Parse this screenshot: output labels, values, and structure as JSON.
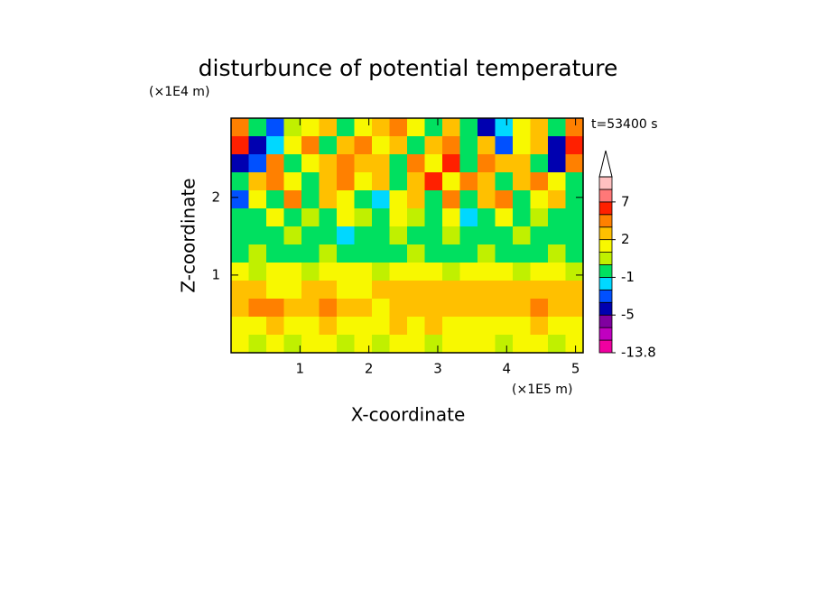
{
  "chart_data": {
    "type": "contour",
    "title": "disturbunce of potential temperature",
    "annotation": "t=53400 s",
    "x_label": "X-coordinate",
    "y_label": "Z-coordinate",
    "x_unit": "(×1E5 m)",
    "y_unit": "(×1E4 m)",
    "xlim": [
      0,
      5.11
    ],
    "ylim": [
      0,
      3.02
    ],
    "xticks": [
      1,
      2,
      3,
      4,
      5
    ],
    "yticks": [
      1,
      2
    ],
    "z": [
      [
        3,
        -1,
        -3,
        0,
        1,
        2,
        -1,
        1,
        2,
        3,
        1,
        -1,
        2,
        -1,
        -4,
        -2,
        1,
        2,
        -1,
        3
      ],
      [
        5,
        -4,
        -2,
        1,
        3,
        -1,
        2,
        3,
        1,
        2,
        -1,
        2,
        3,
        -1,
        2,
        -3,
        1,
        2,
        -4,
        5
      ],
      [
        -4,
        -3,
        3,
        -1,
        1,
        2,
        3,
        2,
        2,
        -1,
        3,
        1,
        5,
        -1,
        3,
        2,
        2,
        -1,
        -4,
        3
      ],
      [
        -1,
        2,
        3,
        1,
        -1,
        2,
        3,
        1,
        2,
        -1,
        2,
        5,
        1,
        3,
        2,
        -1,
        2,
        3,
        1,
        -1
      ],
      [
        -3,
        1,
        -1,
        3,
        -1,
        2,
        1,
        -1,
        -2,
        1,
        2,
        -1,
        3,
        -1,
        2,
        3,
        -1,
        1,
        2,
        -1
      ],
      [
        -1,
        -1,
        1,
        -1,
        0,
        -1,
        1,
        0,
        -1,
        1,
        0,
        -1,
        1,
        -2,
        -1,
        1,
        -1,
        0,
        -1,
        -1
      ],
      [
        -1,
        -1,
        -1,
        0,
        -1,
        -1,
        -2,
        -1,
        -1,
        0,
        -1,
        -1,
        0,
        -1,
        -1,
        -1,
        0,
        -1,
        -1,
        -1
      ],
      [
        -1,
        0,
        -1,
        -1,
        -1,
        0,
        -1,
        -1,
        -1,
        -1,
        0,
        -1,
        -1,
        -1,
        0,
        -1,
        -1,
        -1,
        0,
        -1
      ],
      [
        1,
        0,
        1,
        1,
        0,
        1,
        1,
        1,
        0,
        1,
        1,
        1,
        0,
        1,
        1,
        1,
        0,
        1,
        1,
        0
      ],
      [
        2,
        2,
        1,
        1,
        2,
        2,
        1,
        1,
        2,
        2,
        2,
        2,
        2,
        2,
        2,
        2,
        2,
        2,
        2,
        2
      ],
      [
        2,
        3,
        3,
        2,
        2,
        3,
        2,
        2,
        1,
        2,
        2,
        2,
        2,
        2,
        2,
        2,
        2,
        3,
        2,
        2
      ],
      [
        1,
        1,
        2,
        1,
        1,
        2,
        1,
        1,
        1,
        2,
        1,
        2,
        1,
        1,
        1,
        1,
        1,
        2,
        1,
        1
      ],
      [
        1,
        0,
        1,
        0,
        1,
        1,
        0,
        1,
        0,
        1,
        1,
        0,
        1,
        1,
        1,
        0,
        1,
        1,
        0,
        1
      ]
    ],
    "colorbar": {
      "levels": [
        -13.8,
        -9,
        -7,
        -5,
        -3,
        -2,
        -1,
        0,
        1,
        2,
        3,
        5,
        7,
        9,
        13
      ],
      "colors": [
        "#f000a0",
        "#c000c0",
        "#8000a0",
        "#0000b0",
        "#0050ff",
        "#00d8ff",
        "#00e060",
        "#c0f000",
        "#f8f800",
        "#ffc000",
        "#ff8000",
        "#ff2000",
        "#ff7878",
        "#ffc0c0"
      ],
      "ticks": [
        -13.8,
        -5,
        -1,
        2,
        7
      ]
    }
  }
}
